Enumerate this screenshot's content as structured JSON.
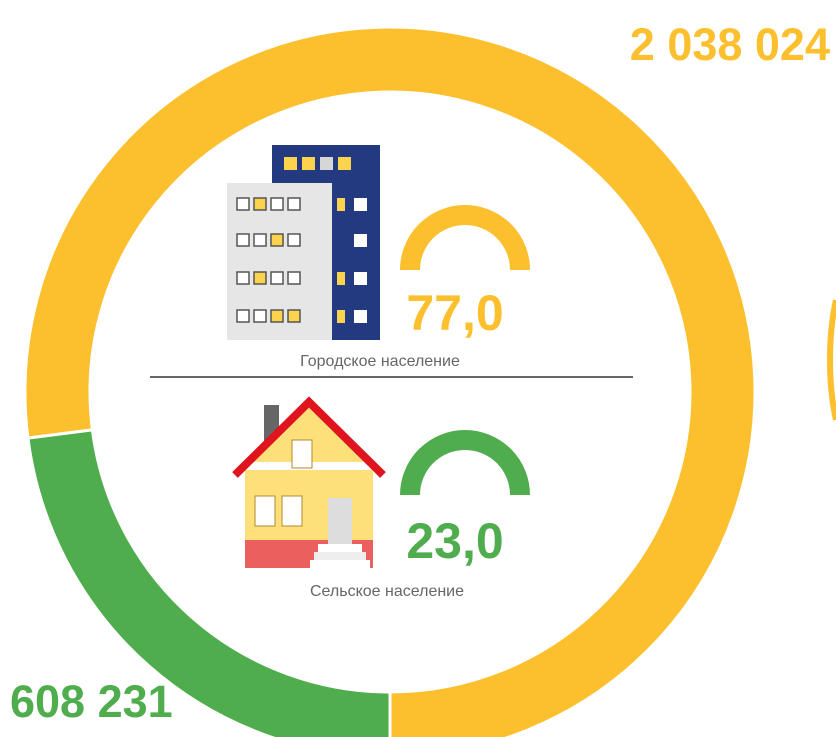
{
  "chart_data": {
    "type": "donut",
    "categories": [
      "Городское население",
      "Сельское население"
    ],
    "values": [
      2038024,
      608231
    ],
    "value_labels": [
      "2 038 024",
      "608 231"
    ],
    "shares": [
      77.0,
      23.0
    ],
    "share_labels": [
      "77,0",
      "23,0"
    ],
    "colors": [
      "#fcbf2d",
      "#50ad4d"
    ]
  }
}
